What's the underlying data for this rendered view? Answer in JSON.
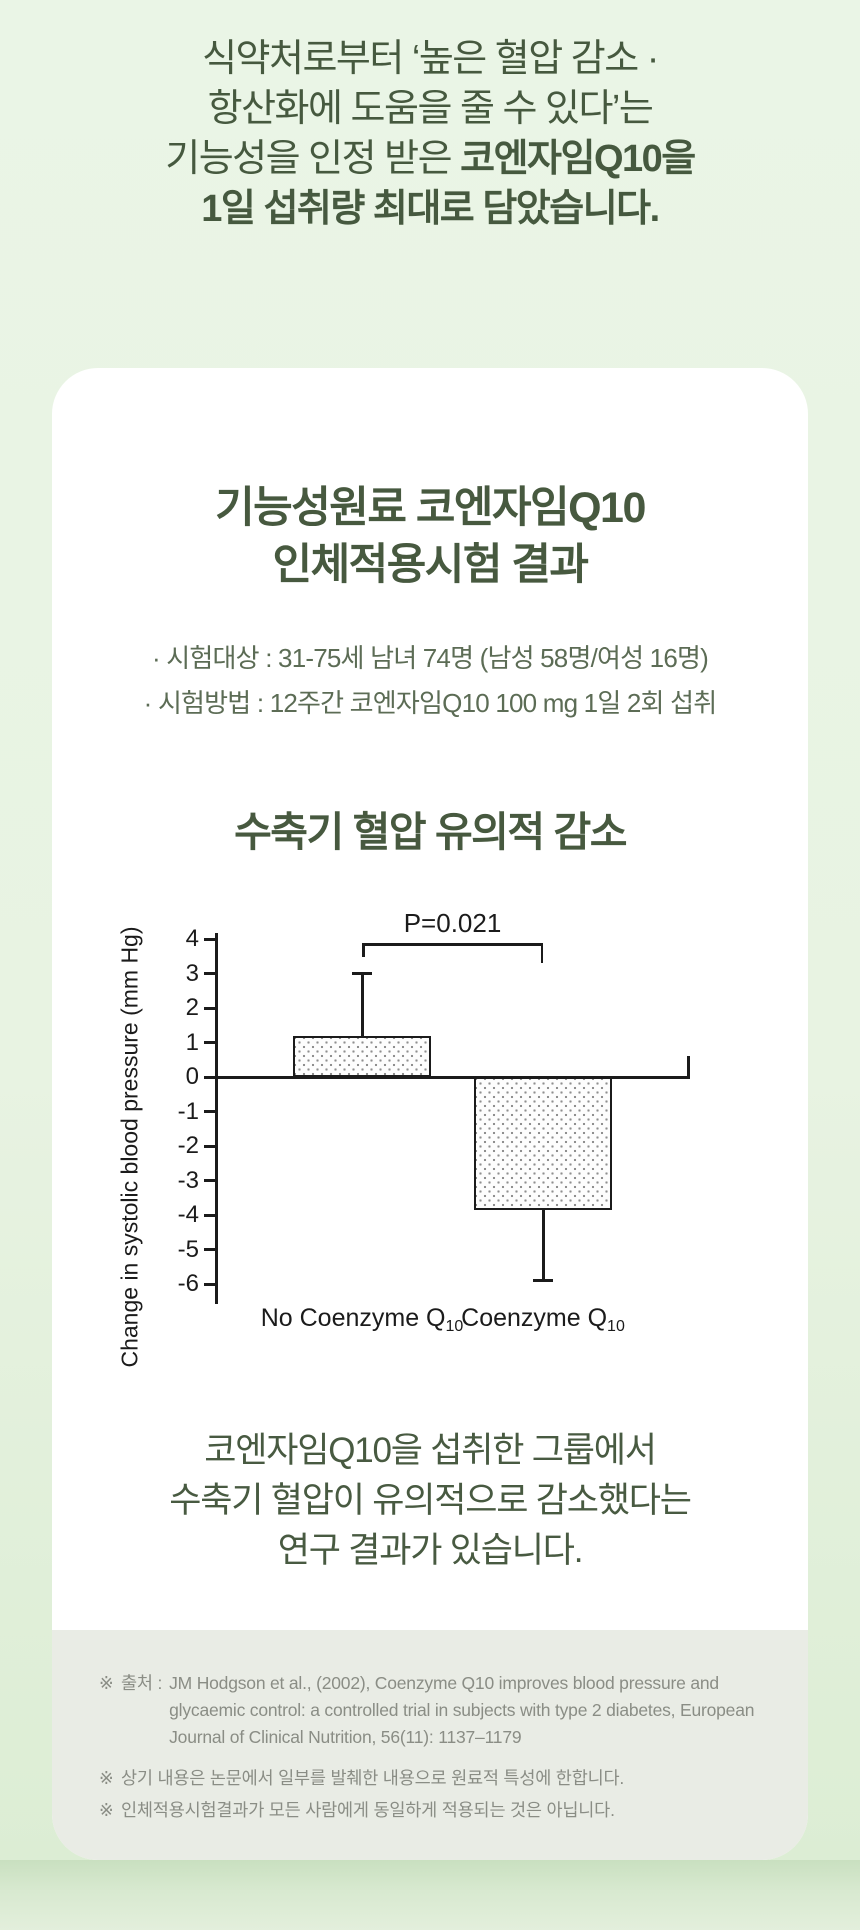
{
  "hero": {
    "lines": [
      {
        "regular": "식약처로부터 ‘높은 혈압 감소 ·",
        "bold": ""
      },
      {
        "regular": "항산화에 도움을 줄 수 있다’는",
        "bold": ""
      },
      {
        "regular": "기능성을 인정 받은 ",
        "bold": "코엔자임Q10을"
      },
      {
        "regular": "",
        "bold": "1일 섭취량 최대로 담았습니다."
      }
    ]
  },
  "card": {
    "title_lines": [
      "기능성원료 코엔자임Q10",
      "인체적용시험 결과"
    ],
    "study_lines": [
      "· 시험대상 : 31-75세 남녀 74명 (남성 58명/여성 16명)",
      "· 시험방법 : 12주간 코엔자임Q10 100 mg 1일 2회 섭취"
    ],
    "conclusion_lines": [
      "코엔자임Q10을 섭취한 그룹에서",
      "수축기 혈압이 유의적으로 감소했다는",
      "연구 결과가 있습니다."
    ]
  },
  "chart_data": {
    "type": "bar",
    "title": "수축기 혈압 유의적 감소",
    "xlabel": "",
    "ylabel": "Change in systolic blood pressure (mm Hg)",
    "ylim": [
      -6,
      4
    ],
    "yticks": [
      4,
      3,
      2,
      1,
      0,
      -1,
      -2,
      -3,
      -4,
      -5,
      -6
    ],
    "categories": [
      {
        "text": "No Coenzyme Q",
        "sub": "10"
      },
      {
        "text": "Coenzyme Q",
        "sub": "10"
      }
    ],
    "values": [
      1.2,
      -3.85
    ],
    "error_whisker_ends": [
      3.0,
      -5.9
    ],
    "significance_label": "P=0.021",
    "bar_style": "stippled",
    "grid": false,
    "legend": "none"
  },
  "footnotes": {
    "source": {
      "marker": "※",
      "label": "출처 :",
      "text": "JM Hodgson et al., (2002), Coenzyme Q10 improves blood pressure and glycaemic control: a controlled trial in subjects with type 2 diabetes, European Journal of Clinical Nutrition, 56(11): 1137–1179"
    },
    "notes": [
      {
        "marker": "※",
        "text": "상기 내용은 논문에서 일부를 발췌한 내용으로 원료적 특성에 한합니다."
      },
      {
        "marker": "※",
        "text": "인체적용시험결과가 모든 사람에게 동일하게 적용되는 것은 아닙니다."
      }
    ]
  },
  "colors": {
    "page_bg_top": "#eaf5e6",
    "page_bg_bottom": "#dcedd4",
    "heading_green": "#46593f",
    "study_text": "#5c6c55",
    "card_bg": "#ffffff",
    "footnote_bg": "#e9ece5",
    "footnote_text": "#8a8d85",
    "chart_ink": "#1b1b1b",
    "below_card_shadow": "#c9e0c0"
  }
}
